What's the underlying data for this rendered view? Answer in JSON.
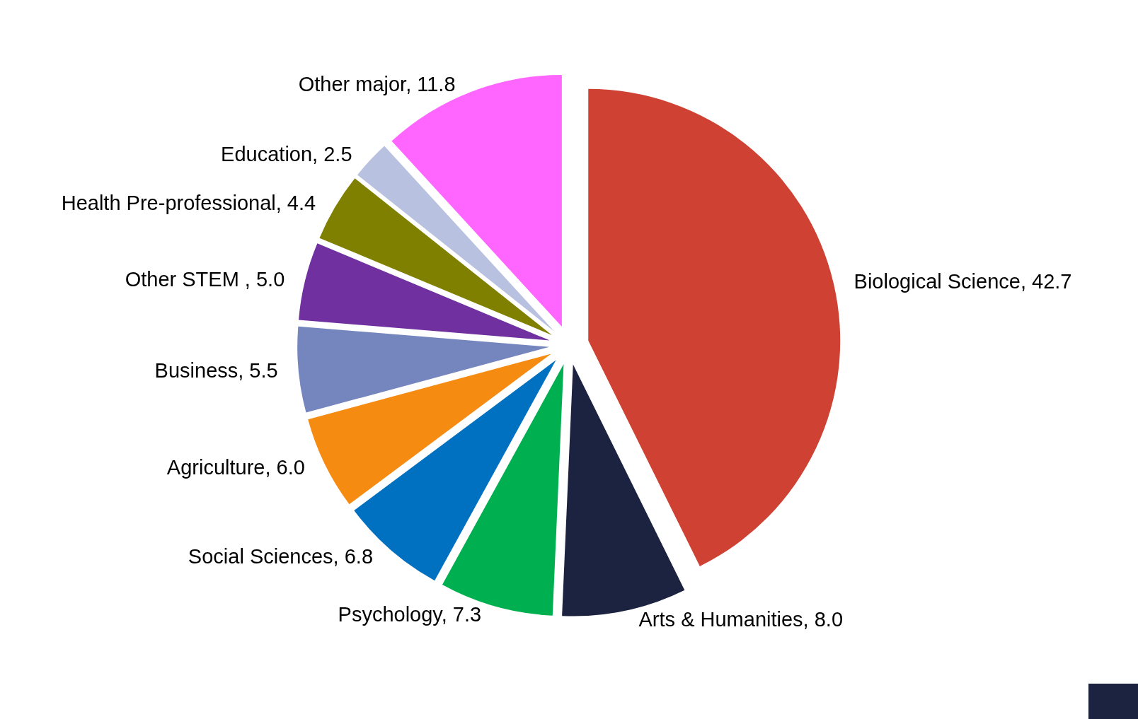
{
  "chart_data": {
    "type": "pie",
    "categories": [
      "Biological Science",
      "Arts & Humanities",
      "Psychology",
      "Social Sciences",
      "Agriculture",
      "Business",
      "Other STEM ",
      "Health Pre-professional",
      "Education",
      "Other major"
    ],
    "values": [
      42.7,
      8.0,
      7.3,
      6.8,
      6.0,
      5.5,
      5.0,
      4.4,
      2.5,
      11.8
    ],
    "colors": [
      "#cf4233",
      "#1c2340",
      "#00b050",
      "#0070c0",
      "#f68b12",
      "#7586be",
      "#7030a0",
      "#808000",
      "#b8c1e0",
      "#ff66ff"
    ],
    "value_labels": [
      ", 42.7",
      ", 8.0",
      ", 7.3",
      ", 6.8",
      ", 6.0",
      ", 5.5",
      ", 5.0",
      ", 4.4",
      ", 2.5",
      ", 11.8"
    ],
    "legend": false
  }
}
